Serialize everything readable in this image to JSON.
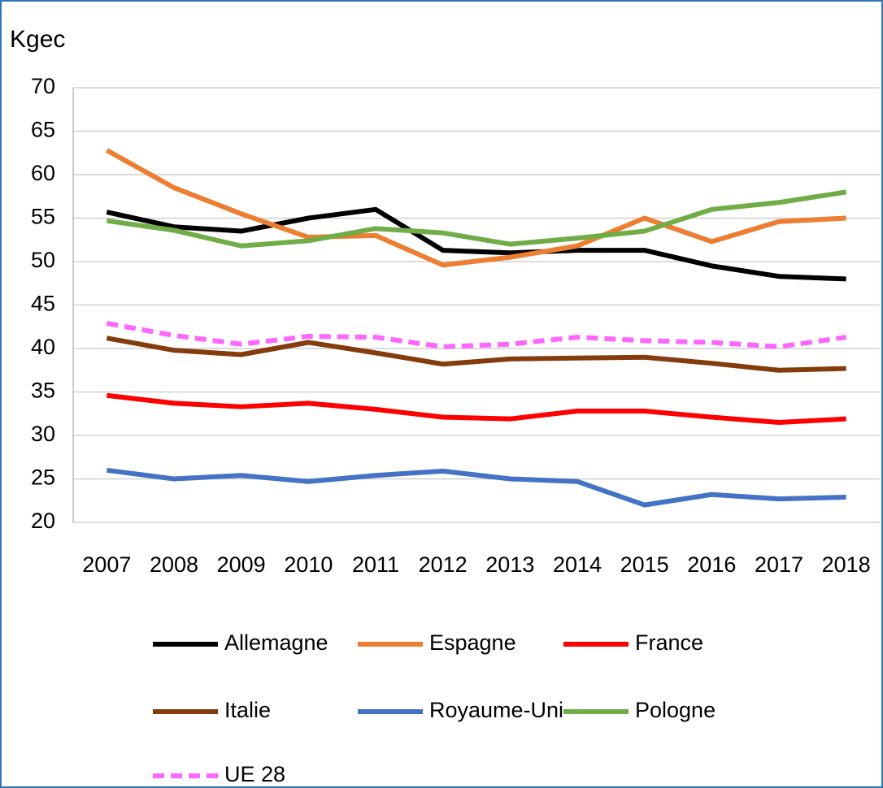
{
  "chart_data": {
    "type": "line",
    "y_label": "Kgec",
    "categories": [
      "2007",
      "2008",
      "2009",
      "2010",
      "2011",
      "2012",
      "2013",
      "2014",
      "2015",
      "2016",
      "2017",
      "2018"
    ],
    "ylim": [
      20,
      70
    ],
    "yticks": [
      20,
      25,
      30,
      35,
      40,
      45,
      50,
      55,
      60,
      65,
      70
    ],
    "grid": true,
    "legend": "bottom",
    "series": [
      {
        "name": "Allemagne",
        "color": "#000000",
        "style": "solid",
        "values": [
          55.7,
          54,
          53.5,
          55,
          56,
          51.3,
          51,
          51.3,
          51.3,
          49.5,
          48.3,
          48
        ]
      },
      {
        "name": "Espagne",
        "color": "#ed7d31",
        "style": "solid",
        "values": [
          62.8,
          58.5,
          55.5,
          52.8,
          53,
          49.6,
          50.5,
          51.8,
          55,
          52.3,
          54.6,
          55
        ]
      },
      {
        "name": "France",
        "color": "#ff0000",
        "style": "solid",
        "values": [
          34.6,
          33.7,
          33.3,
          33.7,
          33,
          32.1,
          31.9,
          32.8,
          32.8,
          32.1,
          31.5,
          31.9
        ]
      },
      {
        "name": "Italie",
        "color": "#843c0c",
        "style": "solid",
        "values": [
          41.2,
          39.8,
          39.3,
          40.7,
          39.5,
          38.2,
          38.8,
          38.9,
          39,
          38.3,
          37.5,
          37.7
        ]
      },
      {
        "name": "Royaume-Uni",
        "color": "#4472c4",
        "style": "solid",
        "values": [
          26,
          25,
          25.4,
          24.7,
          25.4,
          25.9,
          25,
          24.7,
          22,
          23.2,
          22.7,
          22.9
        ]
      },
      {
        "name": "Pologne",
        "color": "#70ad47",
        "style": "solid",
        "values": [
          54.7,
          53.6,
          51.8,
          52.4,
          53.8,
          53.3,
          52,
          52.7,
          53.5,
          56,
          56.8,
          58
        ]
      },
      {
        "name": "UE 28",
        "color": "#ff66ff",
        "style": "dashed",
        "values": [
          42.9,
          41.5,
          40.5,
          41.4,
          41.3,
          40.2,
          40.5,
          41.3,
          40.9,
          40.7,
          40.2,
          41.3
        ]
      }
    ]
  }
}
